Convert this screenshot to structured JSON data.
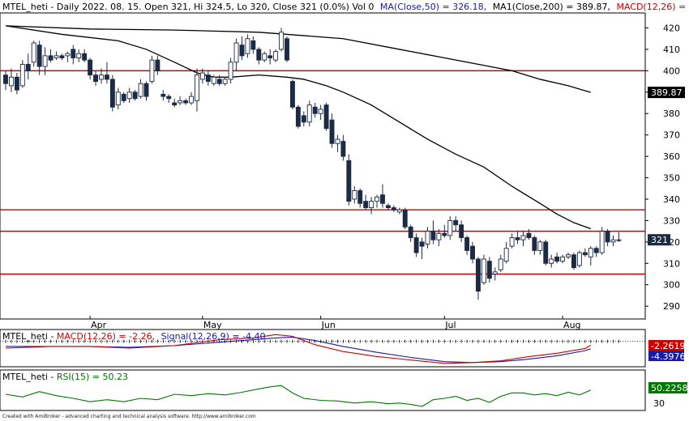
{
  "header": {
    "symbol": "MTEL_heti",
    "main_text": "MTEL_heti - Daily 2022. 08. 15. Open 321, Hi 324.5, Lo 320, Close 321 (0.0%) Vol 0",
    "ma50_text": "MA(Close,50) = 326.18,",
    "ma200_text": "MA1(Close,200) = 389.87,",
    "macd_text": "MACD(12,26) = -2.26,"
  },
  "colors": {
    "up_fill": "#ffffff",
    "down_fill": "#1c2a44",
    "candle_outline": "#1c2a44",
    "ma": "#000000",
    "hline": "#cc0000",
    "macd": "#cc0000",
    "signal": "#1a1aa8",
    "rsi": "#007700",
    "header_blue": "#1a1aa8",
    "header_red": "#cc0000",
    "header_green": "#007700"
  },
  "price_labels": {
    "ma200_value": "389.87",
    "last_close": "321"
  },
  "macd_panel": {
    "title_prefix": "MTEL_heti - ",
    "macd_text": "MACD(12,26) = -2.26,",
    "signal_text": "Signal(12,26,9) = -4.40",
    "macd_value_label": "-2.2619",
    "signal_value_label": "-4.3976"
  },
  "rsi_panel": {
    "title_prefix": "MTEL_heti - ",
    "rsi_text": "RSI(15) = 50.23",
    "value_label": "50.2258",
    "tick": "30"
  },
  "footer": "Created with AmiBroker - advanced charting and technical analysis software. http://www.amibroker.com",
  "chart_data": {
    "type": "candlestick",
    "title": "MTEL_heti - Daily 2022. 08. 15.",
    "ylim": [
      284,
      427
    ],
    "y_ticks": [
      290,
      300,
      310,
      320,
      330,
      340,
      350,
      360,
      370,
      380,
      390,
      400,
      410,
      420
    ],
    "x_month_labels": [
      {
        "label": "Apr",
        "index": 15
      },
      {
        "label": "May",
        "index": 35
      },
      {
        "label": "Jun",
        "index": 56
      },
      {
        "label": "Jul",
        "index": 78
      },
      {
        "label": "Aug",
        "index": 99
      }
    ],
    "horizontal_lines": [
      400,
      335,
      325,
      305
    ],
    "candles": [
      {
        "o": 398,
        "h": 400,
        "l": 391,
        "c": 394
      },
      {
        "o": 393,
        "h": 401,
        "l": 390,
        "c": 397
      },
      {
        "o": 397,
        "h": 399,
        "l": 389,
        "c": 391
      },
      {
        "o": 393,
        "h": 405,
        "l": 392,
        "c": 403
      },
      {
        "o": 403,
        "h": 408,
        "l": 396,
        "c": 400
      },
      {
        "o": 404,
        "h": 414,
        "l": 402,
        "c": 413
      },
      {
        "o": 412,
        "h": 414,
        "l": 398,
        "c": 402
      },
      {
        "o": 402,
        "h": 411,
        "l": 398,
        "c": 407
      },
      {
        "o": 407,
        "h": 410,
        "l": 404,
        "c": 405
      },
      {
        "o": 406,
        "h": 409,
        "l": 405,
        "c": 407
      },
      {
        "o": 407,
        "h": 408,
        "l": 405,
        "c": 406
      },
      {
        "o": 407,
        "h": 409,
        "l": 404,
        "c": 408
      },
      {
        "o": 410,
        "h": 412,
        "l": 403,
        "c": 406
      },
      {
        "o": 406,
        "h": 410,
        "l": 404,
        "c": 408
      },
      {
        "o": 408,
        "h": 410,
        "l": 404,
        "c": 405
      },
      {
        "o": 405,
        "h": 406,
        "l": 396,
        "c": 398
      },
      {
        "o": 398,
        "h": 400,
        "l": 393,
        "c": 395
      },
      {
        "o": 396,
        "h": 401,
        "l": 394,
        "c": 398
      },
      {
        "o": 398,
        "h": 404,
        "l": 394,
        "c": 396
      },
      {
        "o": 396,
        "h": 398,
        "l": 381,
        "c": 383
      },
      {
        "o": 384,
        "h": 392,
        "l": 382,
        "c": 390
      },
      {
        "o": 389,
        "h": 390,
        "l": 385,
        "c": 386
      },
      {
        "o": 387,
        "h": 392,
        "l": 385,
        "c": 390
      },
      {
        "o": 390,
        "h": 391,
        "l": 386,
        "c": 387
      },
      {
        "o": 388,
        "h": 396,
        "l": 387,
        "c": 394
      },
      {
        "o": 394,
        "h": 395,
        "l": 386,
        "c": 388
      },
      {
        "o": 395,
        "h": 407,
        "l": 394,
        "c": 405
      },
      {
        "o": 405,
        "h": 407,
        "l": 398,
        "c": 400
      },
      {
        "o": 389,
        "h": 391,
        "l": 386,
        "c": 388
      },
      {
        "o": 388,
        "h": 389,
        "l": 385,
        "c": 387
      },
      {
        "o": 385,
        "h": 387,
        "l": 383,
        "c": 384
      },
      {
        "o": 385,
        "h": 388,
        "l": 384,
        "c": 386
      },
      {
        "o": 386,
        "h": 387,
        "l": 384,
        "c": 385
      },
      {
        "o": 385,
        "h": 390,
        "l": 384,
        "c": 388
      },
      {
        "o": 386,
        "h": 401,
        "l": 381,
        "c": 398
      },
      {
        "o": 396,
        "h": 401,
        "l": 394,
        "c": 399
      },
      {
        "o": 398,
        "h": 400,
        "l": 393,
        "c": 395
      },
      {
        "o": 394,
        "h": 398,
        "l": 393,
        "c": 397
      },
      {
        "o": 396,
        "h": 398,
        "l": 393,
        "c": 394
      },
      {
        "o": 394,
        "h": 397,
        "l": 393,
        "c": 396
      },
      {
        "o": 396,
        "h": 406,
        "l": 394,
        "c": 404
      },
      {
        "o": 404,
        "h": 415,
        "l": 400,
        "c": 413
      },
      {
        "o": 412,
        "h": 416,
        "l": 405,
        "c": 407
      },
      {
        "o": 408,
        "h": 417,
        "l": 406,
        "c": 415
      },
      {
        "o": 414,
        "h": 416,
        "l": 408,
        "c": 410
      },
      {
        "o": 410,
        "h": 411,
        "l": 403,
        "c": 405
      },
      {
        "o": 405,
        "h": 409,
        "l": 404,
        "c": 408
      },
      {
        "o": 407,
        "h": 410,
        "l": 403,
        "c": 406
      },
      {
        "o": 405,
        "h": 410,
        "l": 404,
        "c": 409
      },
      {
        "o": 410,
        "h": 420,
        "l": 409,
        "c": 418
      },
      {
        "o": 415,
        "h": 416,
        "l": 404,
        "c": 405
      },
      {
        "o": 395,
        "h": 396,
        "l": 382,
        "c": 383
      },
      {
        "o": 383,
        "h": 384,
        "l": 373,
        "c": 374
      },
      {
        "o": 379,
        "h": 381,
        "l": 374,
        "c": 376
      },
      {
        "o": 376,
        "h": 386,
        "l": 374,
        "c": 384
      },
      {
        "o": 383,
        "h": 385,
        "l": 378,
        "c": 380
      },
      {
        "o": 380,
        "h": 384,
        "l": 377,
        "c": 382
      },
      {
        "o": 384,
        "h": 385,
        "l": 372,
        "c": 373
      },
      {
        "o": 377,
        "h": 380,
        "l": 364,
        "c": 366
      },
      {
        "o": 366,
        "h": 370,
        "l": 362,
        "c": 368
      },
      {
        "o": 367,
        "h": 370,
        "l": 358,
        "c": 360
      },
      {
        "o": 358,
        "h": 361,
        "l": 337,
        "c": 339
      },
      {
        "o": 340,
        "h": 346,
        "l": 338,
        "c": 344
      },
      {
        "o": 344,
        "h": 345,
        "l": 336,
        "c": 338
      },
      {
        "o": 339,
        "h": 342,
        "l": 335,
        "c": 336
      },
      {
        "o": 336,
        "h": 341,
        "l": 333,
        "c": 339
      },
      {
        "o": 339,
        "h": 342,
        "l": 336,
        "c": 341
      },
      {
        "o": 342,
        "h": 347,
        "l": 336,
        "c": 338
      },
      {
        "o": 337,
        "h": 338,
        "l": 335,
        "c": 336
      },
      {
        "o": 336,
        "h": 337,
        "l": 334,
        "c": 335
      },
      {
        "o": 334,
        "h": 336,
        "l": 333,
        "c": 335
      },
      {
        "o": 335,
        "h": 336,
        "l": 326,
        "c": 327
      },
      {
        "o": 327,
        "h": 328,
        "l": 320,
        "c": 322
      },
      {
        "o": 322,
        "h": 324,
        "l": 313,
        "c": 315
      },
      {
        "o": 320,
        "h": 322,
        "l": 312,
        "c": 318
      },
      {
        "o": 319,
        "h": 327,
        "l": 317,
        "c": 325
      },
      {
        "o": 325,
        "h": 330,
        "l": 319,
        "c": 321
      },
      {
        "o": 321,
        "h": 326,
        "l": 318,
        "c": 324
      },
      {
        "o": 324,
        "h": 328,
        "l": 322,
        "c": 323
      },
      {
        "o": 323,
        "h": 332,
        "l": 321,
        "c": 330
      },
      {
        "o": 330,
        "h": 332,
        "l": 325,
        "c": 328
      },
      {
        "o": 328,
        "h": 330,
        "l": 320,
        "c": 322
      },
      {
        "o": 322,
        "h": 323,
        "l": 314,
        "c": 316
      },
      {
        "o": 318,
        "h": 320,
        "l": 310,
        "c": 312
      },
      {
        "o": 312,
        "h": 313,
        "l": 293,
        "c": 297
      },
      {
        "o": 301,
        "h": 314,
        "l": 300,
        "c": 312
      },
      {
        "o": 311,
        "h": 313,
        "l": 301,
        "c": 303
      },
      {
        "o": 305,
        "h": 308,
        "l": 302,
        "c": 306
      },
      {
        "o": 307,
        "h": 314,
        "l": 306,
        "c": 312
      },
      {
        "o": 311,
        "h": 320,
        "l": 310,
        "c": 317
      },
      {
        "o": 318,
        "h": 324,
        "l": 317,
        "c": 322
      },
      {
        "o": 322,
        "h": 325,
        "l": 319,
        "c": 321
      },
      {
        "o": 321,
        "h": 325,
        "l": 318,
        "c": 323
      },
      {
        "o": 324,
        "h": 326,
        "l": 321,
        "c": 322
      },
      {
        "o": 322,
        "h": 323,
        "l": 314,
        "c": 316
      },
      {
        "o": 316,
        "h": 321,
        "l": 314,
        "c": 320
      },
      {
        "o": 320,
        "h": 321,
        "l": 309,
        "c": 310
      },
      {
        "o": 310,
        "h": 314,
        "l": 308,
        "c": 312
      },
      {
        "o": 313,
        "h": 315,
        "l": 310,
        "c": 311
      },
      {
        "o": 311,
        "h": 314,
        "l": 310,
        "c": 313
      },
      {
        "o": 313,
        "h": 315,
        "l": 312,
        "c": 314
      },
      {
        "o": 314,
        "h": 315,
        "l": 307,
        "c": 308
      },
      {
        "o": 309,
        "h": 316,
        "l": 308,
        "c": 315
      },
      {
        "o": 315,
        "h": 317,
        "l": 313,
        "c": 314
      },
      {
        "o": 313,
        "h": 318,
        "l": 309,
        "c": 317
      },
      {
        "o": 317,
        "h": 318,
        "l": 313,
        "c": 315
      },
      {
        "o": 315,
        "h": 327,
        "l": 314,
        "c": 325
      },
      {
        "o": 325,
        "h": 326,
        "l": 318,
        "c": 320
      },
      {
        "o": 320,
        "h": 323,
        "l": 318,
        "c": 321
      },
      {
        "o": 321,
        "h": 324.5,
        "l": 320,
        "c": 321
      }
    ],
    "series": [
      {
        "name": "MA(Close,50)",
        "points": [
          [
            0,
            421
          ],
          [
            10,
            417
          ],
          [
            20,
            414
          ],
          [
            25,
            410
          ],
          [
            30,
            404
          ],
          [
            34,
            399
          ],
          [
            37,
            397
          ],
          [
            40,
            397
          ],
          [
            45,
            398
          ],
          [
            50,
            397
          ],
          [
            53,
            396
          ],
          [
            57,
            393
          ],
          [
            60,
            390
          ],
          [
            65,
            384
          ],
          [
            70,
            376
          ],
          [
            75,
            368
          ],
          [
            80,
            361
          ],
          [
            85,
            355
          ],
          [
            90,
            346
          ],
          [
            95,
            338
          ],
          [
            98,
            333
          ],
          [
            101,
            329
          ],
          [
            104,
            326.18
          ]
        ]
      },
      {
        "name": "MA1(Close,200)",
        "points": [
          [
            0,
            421
          ],
          [
            15,
            419.5
          ],
          [
            30,
            419
          ],
          [
            45,
            418
          ],
          [
            50,
            417
          ],
          [
            60,
            415
          ],
          [
            70,
            410
          ],
          [
            80,
            405
          ],
          [
            90,
            400
          ],
          [
            95,
            396
          ],
          [
            100,
            393
          ],
          [
            104,
            389.87
          ]
        ]
      }
    ],
    "macd": {
      "ylim": [
        -15,
        7
      ],
      "macd_points": [
        [
          0,
          -4
        ],
        [
          8,
          -3
        ],
        [
          15,
          -3
        ],
        [
          22,
          -4
        ],
        [
          30,
          -2.5
        ],
        [
          38,
          1
        ],
        [
          44,
          2
        ],
        [
          48,
          4
        ],
        [
          51,
          3
        ],
        [
          55,
          -2
        ],
        [
          60,
          -6
        ],
        [
          66,
          -9
        ],
        [
          72,
          -11
        ],
        [
          78,
          -13
        ],
        [
          83,
          -12.5
        ],
        [
          88,
          -11.5
        ],
        [
          93,
          -9
        ],
        [
          98,
          -7
        ],
        [
          103,
          -4.2
        ],
        [
          104,
          -2.2619
        ]
      ],
      "signal_points": [
        [
          0,
          -3
        ],
        [
          8,
          -3
        ],
        [
          15,
          -3
        ],
        [
          22,
          -3.5
        ],
        [
          30,
          -2.5
        ],
        [
          38,
          -0.5
        ],
        [
          44,
          1
        ],
        [
          48,
          2
        ],
        [
          51,
          2.5
        ],
        [
          55,
          0.5
        ],
        [
          60,
          -3
        ],
        [
          66,
          -6.5
        ],
        [
          72,
          -9.5
        ],
        [
          78,
          -12
        ],
        [
          83,
          -12.5
        ],
        [
          88,
          -12
        ],
        [
          93,
          -10.5
        ],
        [
          98,
          -8.5
        ],
        [
          103,
          -5.5
        ],
        [
          104,
          -4.3976
        ]
      ]
    },
    "rsi": {
      "ylim": [
        20,
        80
      ],
      "points": [
        [
          0,
          44
        ],
        [
          3,
          40
        ],
        [
          6,
          48
        ],
        [
          9,
          42
        ],
        [
          12,
          38
        ],
        [
          15,
          33
        ],
        [
          18,
          36
        ],
        [
          21,
          33
        ],
        [
          24,
          38
        ],
        [
          27,
          36
        ],
        [
          30,
          44
        ],
        [
          33,
          42
        ],
        [
          36,
          45
        ],
        [
          39,
          43
        ],
        [
          42,
          47
        ],
        [
          45,
          52
        ],
        [
          47,
          55
        ],
        [
          49,
          57
        ],
        [
          51,
          46
        ],
        [
          53,
          38
        ],
        [
          56,
          35
        ],
        [
          59,
          34
        ],
        [
          62,
          31
        ],
        [
          65,
          33
        ],
        [
          68,
          30
        ],
        [
          70,
          31
        ],
        [
          72,
          29
        ],
        [
          74,
          26
        ],
        [
          76,
          36
        ],
        [
          78,
          38
        ],
        [
          80,
          41
        ],
        [
          82,
          35
        ],
        [
          84,
          38
        ],
        [
          86,
          32
        ],
        [
          88,
          41
        ],
        [
          90,
          46
        ],
        [
          92,
          46
        ],
        [
          94,
          43
        ],
        [
          96,
          45
        ],
        [
          98,
          42
        ],
        [
          100,
          47
        ],
        [
          102,
          43
        ],
        [
          104,
          50.23
        ]
      ]
    }
  }
}
